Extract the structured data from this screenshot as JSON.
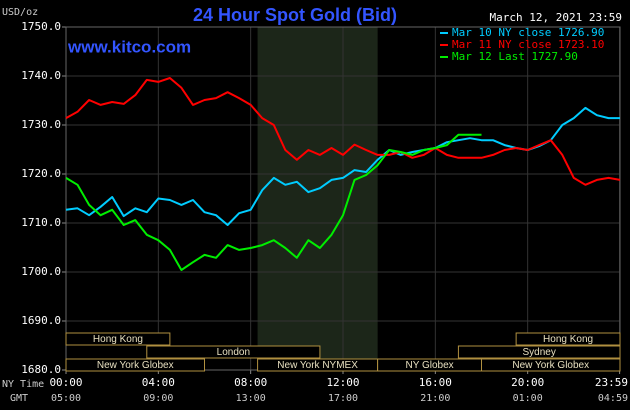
{
  "chart_data": {
    "type": "line",
    "title": "24 Hour Spot Gold (Bid)",
    "site": "www.kitco.com",
    "timestamp": "March 12, 2021 23:59",
    "y_unit": "USD/oz",
    "x_axis_label": "NY Time",
    "x2_axis_label": "GMT",
    "xlim": [
      0,
      24
    ],
    "ylim": [
      1680,
      1750
    ],
    "xticks": [
      {
        "value": 0,
        "label": "00:00"
      },
      {
        "value": 4,
        "label": "04:00"
      },
      {
        "value": 8,
        "label": "08:00"
      },
      {
        "value": 12,
        "label": "12:00"
      },
      {
        "value": 16,
        "label": "16:00"
      },
      {
        "value": 20,
        "label": "20:00"
      },
      {
        "value": 23.983,
        "label": "23:59"
      }
    ],
    "x2_tick_labels": [
      "05:00",
      "09:00",
      "13:00",
      "17:00",
      "21:00",
      "01:00",
      "04:59"
    ],
    "yticks": [
      {
        "value": 1680,
        "label": "1680.0"
      },
      {
        "value": 1690,
        "label": "1690.0"
      },
      {
        "value": 1700,
        "label": "1700.0"
      },
      {
        "value": 1710,
        "label": "1710.0"
      },
      {
        "value": 1720,
        "label": "1720.0"
      },
      {
        "value": 1730,
        "label": "1730.0"
      },
      {
        "value": 1740,
        "label": "1740.0"
      },
      {
        "value": 1750,
        "label": "1750.0"
      }
    ],
    "grid": true,
    "legend": "top-right",
    "x": [
      0,
      0.5,
      1,
      1.5,
      2,
      2.5,
      3,
      3.5,
      4,
      4.5,
      5,
      5.5,
      6,
      6.5,
      7,
      7.5,
      8,
      8.5,
      9,
      9.5,
      10,
      10.5,
      11,
      11.5,
      12,
      12.5,
      13,
      13.5,
      14,
      14.5,
      15,
      15.5,
      16,
      16.5,
      17,
      17.5,
      18,
      18.5,
      19,
      19.5,
      20,
      20.5,
      21,
      21.5,
      22,
      22.5,
      23,
      23.5,
      24
    ],
    "series": [
      {
        "name": "Mar 10 NY close 1726.90",
        "color": "#00ccff",
        "values": [
          1712.7,
          1713,
          1711.6,
          1713.3,
          1715.3,
          1711.4,
          1713,
          1712.2,
          1715,
          1714.7,
          1713.7,
          1714.7,
          1712.2,
          1711.6,
          1709.6,
          1712,
          1712.7,
          1716.7,
          1719.2,
          1717.8,
          1718.4,
          1716.3,
          1717.1,
          1718.8,
          1719.2,
          1720.8,
          1720.4,
          1722.9,
          1724.9,
          1723.9,
          1724.5,
          1724.9,
          1725.3,
          1726.5,
          1726.9,
          1727.3,
          1726.9,
          1726.9,
          1725.9,
          1725.3,
          1724.9,
          1725.7,
          1726.9,
          1730,
          1731.4,
          1733.5,
          1732,
          1731.4,
          1731.4
        ]
      },
      {
        "name": "Mar 11 NY close 1723.10",
        "color": "#ff0000",
        "values": [
          1731.4,
          1732.7,
          1735.1,
          1734.1,
          1734.7,
          1734.3,
          1736.1,
          1739.2,
          1738.8,
          1739.6,
          1737.6,
          1734.1,
          1735.1,
          1735.5,
          1736.7,
          1735.5,
          1734.1,
          1731.4,
          1730,
          1724.9,
          1722.9,
          1724.9,
          1723.9,
          1725.3,
          1723.9,
          1726,
          1724.9,
          1723.9,
          1723.9,
          1724.5,
          1723.3,
          1723.9,
          1725.3,
          1723.9,
          1723.3,
          1723.3,
          1723.3,
          1723.9,
          1724.9,
          1725.3,
          1724.9,
          1725.9,
          1726.9,
          1723.9,
          1719.2,
          1717.8,
          1718.8,
          1719.2,
          1718.8
        ]
      },
      {
        "name": "Mar 12 Last 1727.90",
        "color": "#00ee00",
        "values": [
          1719.2,
          1717.8,
          1713.7,
          1711.6,
          1712.7,
          1709.6,
          1710.6,
          1707.6,
          1706.5,
          1704.5,
          1700.4,
          1702,
          1703.5,
          1702.9,
          1705.5,
          1704.5,
          1704.9,
          1705.5,
          1706.5,
          1704.9,
          1702.9,
          1706.5,
          1704.9,
          1707.6,
          1711.6,
          1718.8,
          1719.8,
          1721.8,
          1724.9,
          1724.5,
          1723.9,
          1724.9,
          1725.3,
          1725.9,
          1728,
          1728,
          1728,
          null,
          null,
          null,
          null,
          null,
          null,
          null,
          null,
          null,
          null,
          null,
          null
        ]
      }
    ],
    "session_rows": [
      [
        {
          "label": "Hong Kong",
          "start": 0,
          "end": 4.5
        },
        {
          "label": "Hong Kong",
          "start": 19.5,
          "end": 24
        }
      ],
      [
        {
          "label": "London",
          "start": 3.5,
          "end": 11
        },
        {
          "label": "Sydney",
          "start": 17,
          "end": 24
        }
      ],
      [
        {
          "label": "New York Globex",
          "start": 0,
          "end": 6
        },
        {
          "label": "New York NYMEX",
          "start": 8.3,
          "end": 13.5,
          "shaded": true
        },
        {
          "label": "NY Globex",
          "start": 13.5,
          "end": 18
        },
        {
          "label": "New York Globex",
          "start": 18,
          "end": 24
        }
      ]
    ]
  }
}
